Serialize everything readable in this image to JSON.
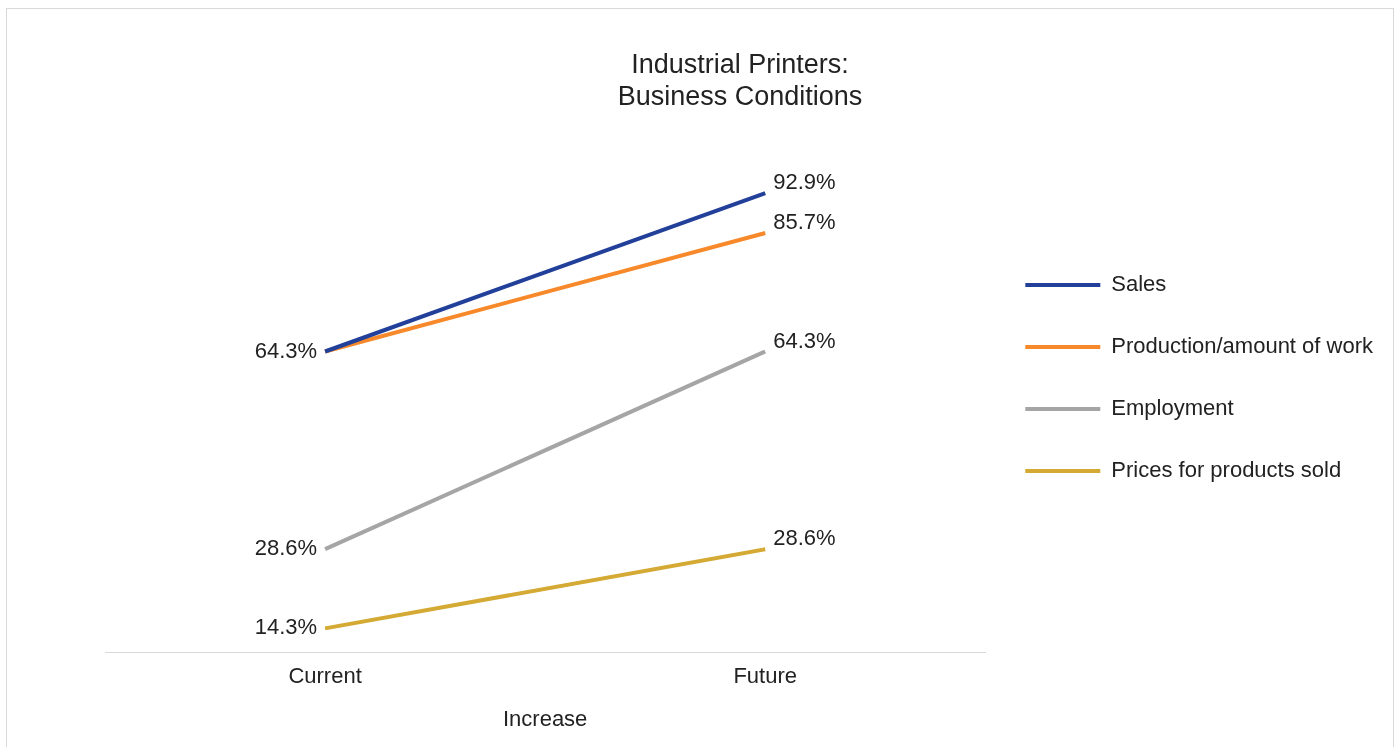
{
  "chart_data": {
    "type": "line",
    "title": "Industrial Printers:\nBusiness Conditions",
    "xlabel": "Increase",
    "categories": [
      "Current",
      "Future"
    ],
    "series": [
      {
        "name": "Sales",
        "color": "#22409a",
        "values": [
          64.3,
          92.9
        ],
        "value_labels": [
          null,
          "92.9%"
        ]
      },
      {
        "name": "Production/amount of work",
        "color": "#f7892a",
        "values": [
          64.3,
          85.7
        ],
        "value_labels": [
          "64.3%",
          "85.7%"
        ]
      },
      {
        "name": "Employment",
        "color": "#a5a5a5",
        "values": [
          28.6,
          64.3
        ],
        "value_labels": [
          "28.6%",
          "64.3%"
        ]
      },
      {
        "name": "Prices for products sold",
        "color": "#d4aa35",
        "values": [
          14.3,
          28.6
        ],
        "value_labels": [
          "14.3%",
          "28.6%"
        ]
      }
    ],
    "tick_labels": "x",
    "grid": false,
    "legend": "right",
    "marker": "none",
    "line_style": "solid"
  }
}
